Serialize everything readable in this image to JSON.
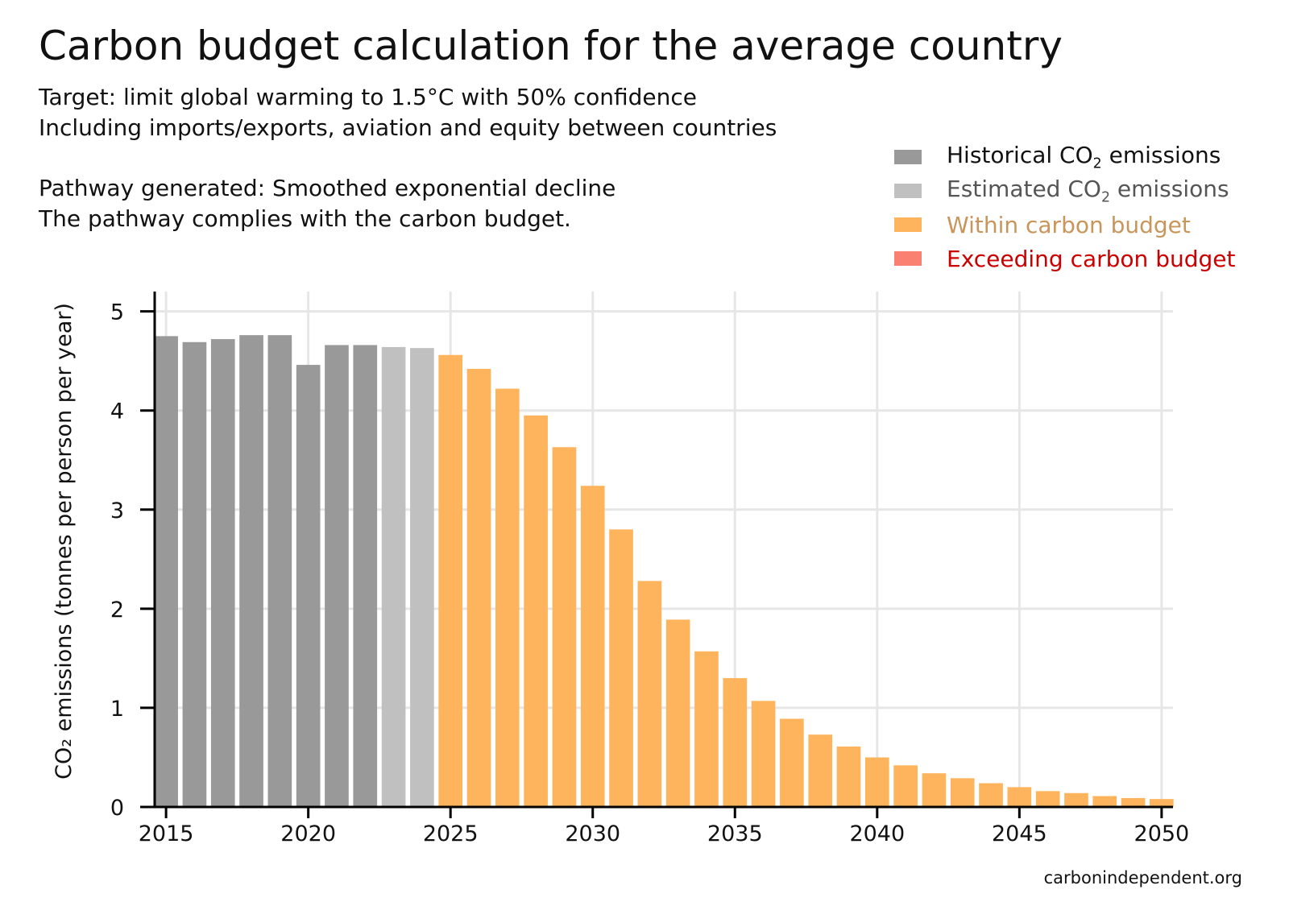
{
  "header": {
    "title": "Carbon budget calculation for the average country",
    "line1": "Target: limit global warming to 1.5°C with 50% confidence",
    "line2": "Including imports/exports, aviation and equity between countries",
    "line3": "Pathway generated: Smoothed exponential decline",
    "line4": "The pathway complies with the carbon budget."
  },
  "legend": [
    {
      "pre": "Historical CO",
      "sub": "2",
      "post": " emissions",
      "swatch": "#999999",
      "text_color": "#111111"
    },
    {
      "pre": "Estimated CO",
      "sub": "2",
      "post": " emissions",
      "swatch": "#c0c0c0",
      "text_color": "#555555"
    },
    {
      "pre": "Within carbon budget",
      "sub": "",
      "post": "",
      "swatch": "#fdb45c",
      "text_color": "#c8955a"
    },
    {
      "pre": "Exceeding carbon budget",
      "sub": "",
      "post": "",
      "swatch": "#fa8072",
      "text_color": "#cc0000"
    }
  ],
  "source": "carbonindependent.org",
  "chart_data": {
    "type": "bar",
    "title": "Carbon budget calculation for the average country",
    "ylabel": "CO₂ emissions (tonnes per person per year)",
    "xlabel": "",
    "ylim": [
      0,
      5.2
    ],
    "xlim": [
      2014.6,
      2050.4
    ],
    "yticks": [
      0,
      1,
      2,
      3,
      4,
      5
    ],
    "xticks": [
      2015,
      2020,
      2025,
      2030,
      2035,
      2040,
      2045,
      2050
    ],
    "grid": true,
    "colors": {
      "historical": "#999999",
      "estimated": "#c0c0c0",
      "within": "#fdb45c",
      "exceeding": "#fa8072"
    },
    "series": [
      {
        "name": "Historical CO2 emissions",
        "category": "historical",
        "x": [
          2015,
          2016,
          2017,
          2018,
          2019,
          2020,
          2021,
          2022
        ],
        "values": [
          4.75,
          4.69,
          4.72,
          4.76,
          4.76,
          4.46,
          4.66,
          4.66
        ]
      },
      {
        "name": "Estimated CO2 emissions",
        "category": "estimated",
        "x": [
          2023,
          2024
        ],
        "values": [
          4.64,
          4.63
        ]
      },
      {
        "name": "Within carbon budget",
        "category": "within",
        "x": [
          2025,
          2026,
          2027,
          2028,
          2029,
          2030,
          2031,
          2032,
          2033,
          2034,
          2035,
          2036,
          2037,
          2038,
          2039,
          2040,
          2041,
          2042,
          2043,
          2044,
          2045,
          2046,
          2047,
          2048,
          2049,
          2050
        ],
        "values": [
          4.56,
          4.42,
          4.22,
          3.95,
          3.63,
          3.24,
          2.8,
          2.28,
          1.89,
          1.57,
          1.3,
          1.07,
          0.89,
          0.73,
          0.61,
          0.5,
          0.42,
          0.34,
          0.29,
          0.24,
          0.2,
          0.16,
          0.14,
          0.11,
          0.09,
          0.08
        ]
      }
    ]
  }
}
